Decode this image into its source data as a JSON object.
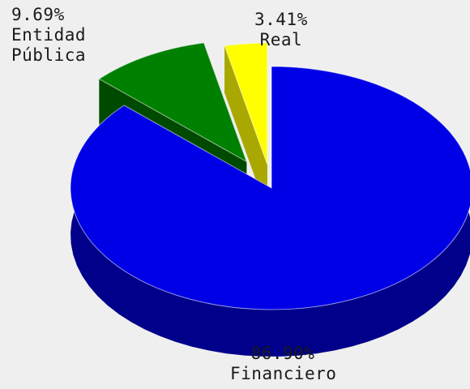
{
  "chart_data": {
    "type": "pie",
    "style": "3d-exploded",
    "slices": [
      {
        "label": "Financiero",
        "value": 86.9,
        "value_label": "86.90%",
        "color": "#0000e6",
        "side_color": "#00008a"
      },
      {
        "label": "Entidad Pública",
        "value": 9.69,
        "value_label": "9.69%",
        "color": "#008000",
        "side_color": "#004a00"
      },
      {
        "label": "Real",
        "value": 3.41,
        "value_label": "3.41%",
        "color": "#ffff00",
        "side_color": "#a8a800"
      }
    ]
  },
  "labels": {
    "entidad_line1": "9.69%",
    "entidad_line2": "Entidad",
    "entidad_line3": "Pública",
    "real_line1": "3.41%",
    "real_line2": "Real",
    "financiero_line1": "86.90%",
    "financiero_line2": "Financiero"
  }
}
